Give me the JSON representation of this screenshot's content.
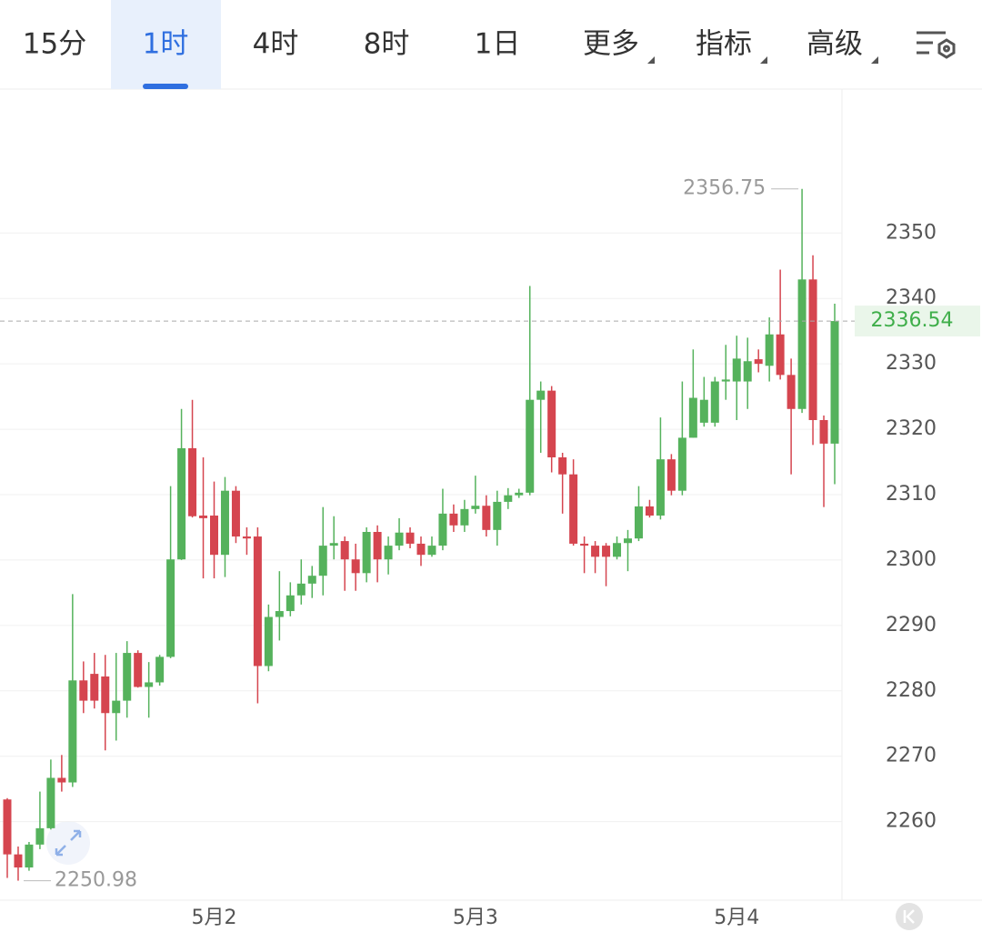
{
  "tabs": [
    {
      "label": "15分"
    },
    {
      "label": "1时"
    },
    {
      "label": "4时"
    },
    {
      "label": "8时"
    },
    {
      "label": "1日"
    },
    {
      "label": "更多",
      "menu": true
    },
    {
      "label": "指标",
      "menu": true
    },
    {
      "label": "高级",
      "menu": true
    }
  ],
  "active_tab": 1,
  "chart_data": {
    "type": "candlestick",
    "categories": [
      null,
      null,
      null,
      null,
      null,
      null,
      null,
      null,
      null,
      null,
      null,
      null,
      null,
      null,
      null,
      null,
      null,
      null,
      null,
      "5月2",
      null,
      null,
      null,
      null,
      null,
      null,
      null,
      null,
      null,
      null,
      null,
      null,
      null,
      null,
      null,
      null,
      null,
      null,
      null,
      null,
      null,
      null,
      null,
      "5月3",
      null,
      null,
      null,
      null,
      null,
      null,
      null,
      null,
      null,
      null,
      null,
      null,
      null,
      null,
      null,
      null,
      null,
      null,
      null,
      null,
      null,
      null,
      null,
      "5月4",
      null,
      null,
      null,
      null,
      null,
      null,
      null,
      null,
      null
    ],
    "open": [
      2263.4,
      2255,
      2253,
      2256.5,
      2259,
      2266.7,
      2266,
      2281.6,
      2282.6,
      2282.2,
      2276.6,
      2278.5,
      2285.8,
      2280.6,
      2281.3,
      2285.2,
      2300.1,
      2317.1,
      2306.8,
      2306.8,
      2300.8,
      2310.6,
      2303.6,
      2303.6,
      2283.8,
      2291.3,
      2292.2,
      2294.6,
      2296.4,
      2297.6,
      2302.2,
      2302.9,
      2300.1,
      2298,
      2304.3,
      2300.1,
      2302.2,
      2304.2,
      2302.5,
      2300.8,
      2302.2,
      2307.1,
      2305.3,
      2307.8,
      2308.3,
      2304.6,
      2308.9,
      2309.9,
      2310.3,
      2324.5,
      2325.9,
      2315.7,
      2313.1,
      2302.5,
      2302.2,
      2302.2,
      2300.5,
      2302.6,
      2303.3,
      2308.2,
      2306.8,
      2315.4,
      2310.6,
      2318.7,
      2321,
      2321,
      2327.3,
      2327.3,
      2327.3,
      2330.7,
      2329.7,
      2334.5,
      2328.3,
      2323.1,
      2342.9,
      2321.4,
      2317.8
    ],
    "high": [
      2263.6,
      2256.2,
      2256.9,
      2264.6,
      2269.5,
      2270.2,
      2294.8,
      2284.5,
      2285.8,
      2285.5,
      2285.8,
      2287.6,
      2286.2,
      2284.4,
      2285.5,
      2311.3,
      2323.1,
      2324.5,
      2315.7,
      2312,
      2312.7,
      2311.3,
      2305,
      2305,
      2293.2,
      2298.3,
      2296.6,
      2300.1,
      2299.1,
      2308.1,
      2306.7,
      2303.6,
      2302.5,
      2305,
      2305.3,
      2303.6,
      2306.4,
      2305,
      2303.6,
      2303.6,
      2310.9,
      2308.5,
      2309.2,
      2312.9,
      2309.9,
      2310.6,
      2311,
      2310.9,
      2341.9,
      2327.3,
      2326.6,
      2316.4,
      2315.4,
      2303.6,
      2302.9,
      2302.6,
      2303.6,
      2304.6,
      2311.3,
      2309.2,
      2321.8,
      2316.2,
      2327.3,
      2332.2,
      2328,
      2328,
      2332.9,
      2334.3,
      2334,
      2332.2,
      2337.1,
      2344.4,
      2330.8,
      2356.75,
      2346.6,
      2322.1,
      2339.2
    ],
    "low": [
      2251.4,
      2250.98,
      2252.5,
      2255.8,
      2258.8,
      2264.6,
      2265.3,
      2276.6,
      2277.3,
      2270.9,
      2272.4,
      2275.9,
      2280.5,
      2275.9,
      2280.8,
      2285,
      2300,
      2306.5,
      2297.2,
      2297.2,
      2297.4,
      2302.6,
      2300.8,
      2278.1,
      2283,
      2287.7,
      2291.4,
      2293.2,
      2294.2,
      2294.6,
      2300.1,
      2295.3,
      2295.3,
      2296.6,
      2296.6,
      2297.8,
      2301.5,
      2301.8,
      2299.1,
      2300.5,
      2301.5,
      2304.3,
      2304.3,
      2307.1,
      2303.6,
      2302.2,
      2307.8,
      2309.5,
      2309.9,
      2316.4,
      2313.4,
      2307.1,
      2302.2,
      2298,
      2298,
      2296,
      2300.1,
      2298.3,
      2302.9,
      2306.5,
      2306.2,
      2309.9,
      2309.9,
      2318.7,
      2320.4,
      2320.4,
      2324.5,
      2321.4,
      2323.1,
      2328.7,
      2327.3,
      2327.6,
      2313.1,
      2322.5,
      2317.6,
      2308.1,
      2311.6
    ],
    "close": [
      2255,
      2253,
      2256.5,
      2259,
      2266.7,
      2266,
      2281.6,
      2278.5,
      2278.5,
      2276.6,
      2278.5,
      2285.8,
      2280.6,
      2281.3,
      2285.2,
      2300.1,
      2317.1,
      2306.7,
      2306.4,
      2300.8,
      2310.6,
      2303.6,
      2303.3,
      2283.8,
      2291.3,
      2292.2,
      2294.6,
      2296.4,
      2297.6,
      2302.2,
      2302.6,
      2300.1,
      2298,
      2304.3,
      2300.1,
      2302.2,
      2304.2,
      2302.5,
      2300.8,
      2302.2,
      2307.1,
      2305.3,
      2307.8,
      2308.3,
      2304.6,
      2308.9,
      2309.9,
      2310.3,
      2324.5,
      2325.9,
      2315.7,
      2313.1,
      2302.5,
      2302.2,
      2300.5,
      2300.5,
      2302.6,
      2303.3,
      2308.2,
      2306.8,
      2315.4,
      2310.6,
      2318.7,
      2324.8,
      2324.5,
      2327.3,
      2327.6,
      2330.8,
      2330.4,
      2330,
      2334.5,
      2328.3,
      2323.1,
      2342.9,
      2321.4,
      2317.8,
      2336.54
    ],
    "up_color": "#55b25c",
    "down_color": "#d5454f",
    "ylim": [
      2248,
      2372
    ],
    "yticks": [
      2260,
      2270,
      2280,
      2290,
      2300,
      2310,
      2320,
      2330,
      2340,
      2350
    ],
    "grid": true
  }
}
